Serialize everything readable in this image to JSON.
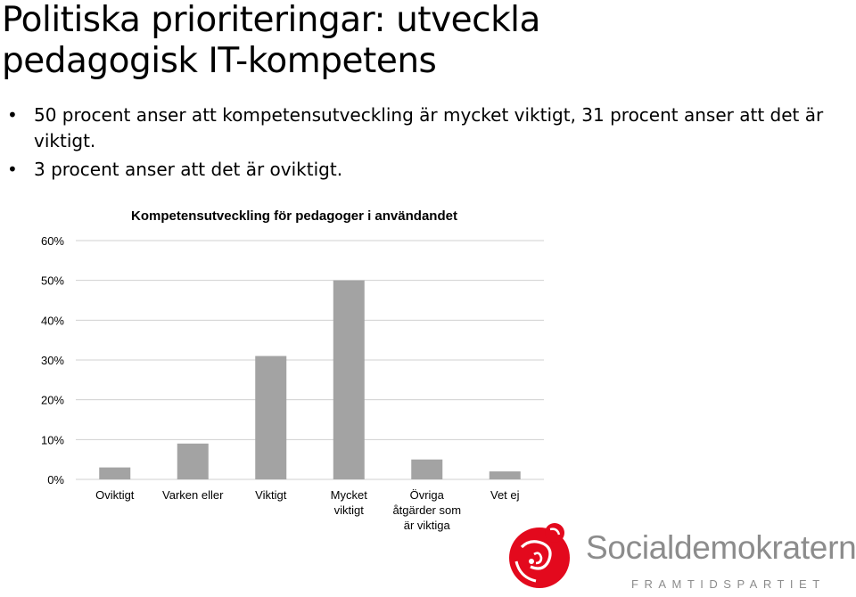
{
  "slide": {
    "title_line1": "Politiska prioriteringar: utveckla",
    "title_line2": "pedagogisk IT-kompetens",
    "bullets": [
      "50 procent anser att kompetensutveckling är mycket viktigt, 31 procent anser att det är viktigt.",
      "3 procent anser att det är oviktigt."
    ]
  },
  "chart_data": {
    "type": "bar",
    "title": "Kompetensutveckling för pedagoger i användandet",
    "categories": [
      "Oviktigt",
      "Varken eller",
      "Viktigt",
      "Mycket viktigt",
      "Övriga åtgärder som är viktiga",
      "Vet ej"
    ],
    "category_lines": [
      [
        "Oviktigt"
      ],
      [
        "Varken eller"
      ],
      [
        "Viktigt"
      ],
      [
        "Mycket",
        "viktigt"
      ],
      [
        "Övriga",
        "åtgärder som",
        "är viktiga"
      ],
      [
        "Vet ej"
      ]
    ],
    "values": [
      0.03,
      0.09,
      0.31,
      0.5,
      0.05,
      0.02
    ],
    "yticks": [
      "0%",
      "10%",
      "20%",
      "30%",
      "40%",
      "50%",
      "60%"
    ],
    "ylim": [
      0,
      0.6
    ],
    "grid": true,
    "bar_color": "#a3a3a3",
    "grid_color": "#d0d0d0"
  },
  "logo": {
    "name": "Socialdemokraterna",
    "tagline": "FRAMTIDSPARTIET",
    "rose_color": "#e3091d",
    "text_color": "#8c8c8c"
  }
}
